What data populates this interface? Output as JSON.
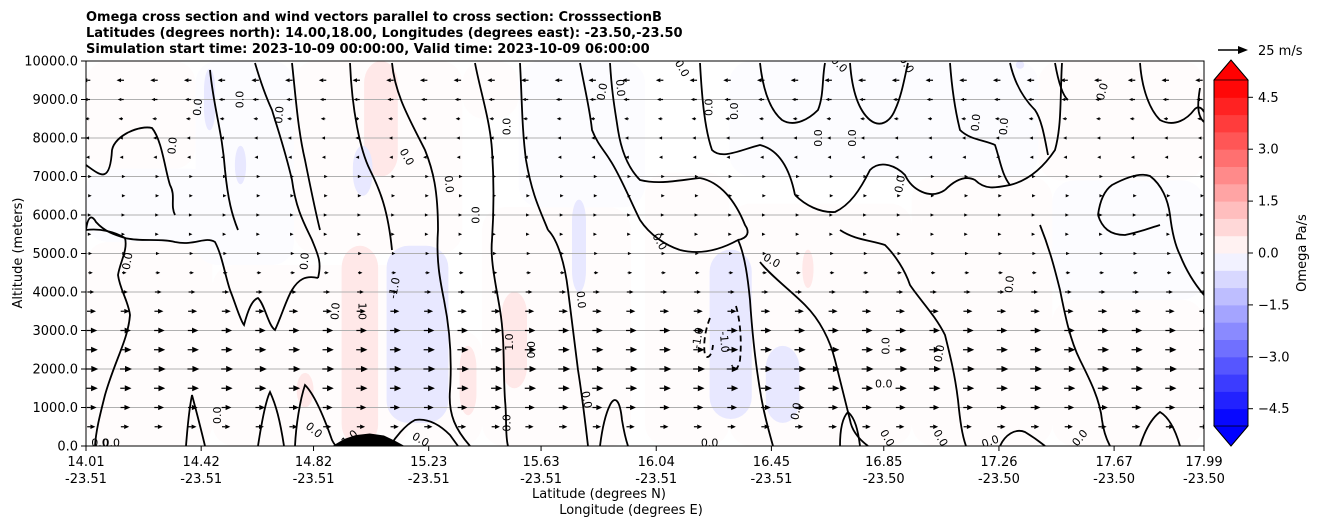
{
  "chart_data": {
    "type": "contour",
    "title_lines": [
      "Omega cross section and wind vectors parallel to cross section: CrosssectionB",
      "Latitudes (degrees north): 14.00,18.00, Longitudes (degrees east): -23.50,-23.50",
      "Simulation start time: 2023-10-09 00:00:00, Valid time: 2023-10-09 06:00:00"
    ],
    "ylabel": "Altitude (meters)",
    "xlabel_lines": [
      "Latitude (degrees N)",
      "Longitude (degrees E)"
    ],
    "ylim": [
      0,
      10000
    ],
    "xlim": [
      14.01,
      17.99
    ],
    "y_ticks": [
      {
        "value": 0,
        "label": "0.0"
      },
      {
        "value": 1000,
        "label": "1000.0"
      },
      {
        "value": 2000,
        "label": "2000.0"
      },
      {
        "value": 3000,
        "label": "3000.0"
      },
      {
        "value": 4000,
        "label": "4000.0"
      },
      {
        "value": 5000,
        "label": "5000.0"
      },
      {
        "value": 6000,
        "label": "6000.0"
      },
      {
        "value": 7000,
        "label": "7000.0"
      },
      {
        "value": 8000,
        "label": "8000.0"
      },
      {
        "value": 9000,
        "label": "9000.0"
      },
      {
        "value": 10000,
        "label": "10000.0"
      }
    ],
    "x_ticks": [
      {
        "lat": 14.01,
        "lat_label": "14.01",
        "lon_label": "-23.51"
      },
      {
        "lat": 14.42,
        "lat_label": "14.42",
        "lon_label": "-23.51"
      },
      {
        "lat": 14.82,
        "lat_label": "14.82",
        "lon_label": "-23.51"
      },
      {
        "lat": 15.23,
        "lat_label": "15.23",
        "lon_label": "-23.51"
      },
      {
        "lat": 15.63,
        "lat_label": "15.63",
        "lon_label": "-23.51"
      },
      {
        "lat": 16.04,
        "lat_label": "16.04",
        "lon_label": "-23.51"
      },
      {
        "lat": 16.45,
        "lat_label": "16.45",
        "lon_label": "-23.51"
      },
      {
        "lat": 16.85,
        "lat_label": "16.85",
        "lon_label": "-23.50"
      },
      {
        "lat": 17.26,
        "lat_label": "17.26",
        "lon_label": "-23.50"
      },
      {
        "lat": 17.67,
        "lat_label": "17.67",
        "lon_label": "-23.50"
      },
      {
        "lat": 17.99,
        "lat_label": "17.99",
        "lon_label": "-23.50"
      }
    ],
    "grid": "horizontal",
    "colorbar": {
      "label": "Omega Pa/s",
      "vmin": -5,
      "vmax": 5,
      "ticks": [
        {
          "value": 4.5,
          "label": "4.5"
        },
        {
          "value": 3.0,
          "label": "3.0"
        },
        {
          "value": 1.5,
          "label": "1.5"
        },
        {
          "value": 0.0,
          "label": "0.0"
        },
        {
          "value": -1.5,
          "label": "−1.5"
        },
        {
          "value": -3.0,
          "label": "−3.0"
        },
        {
          "value": -4.5,
          "label": "−4.5"
        }
      ],
      "negative_color": "#0000ff",
      "positive_color": "#ff0000",
      "extend": "both"
    },
    "quiver_key": {
      "label": "25 m/s",
      "speed": 25
    },
    "omega_regions": [
      {
        "value": 0.15,
        "lat": [
          14.01,
          14.46
        ],
        "alt": [
          0,
          5300
        ]
      },
      {
        "value": 0.15,
        "lat": [
          14.46,
          15.16
        ],
        "alt": [
          0,
          4700
        ]
      },
      {
        "value": 0.15,
        "lat": [
          15.16,
          15.42
        ],
        "alt": [
          0,
          3000
        ]
      },
      {
        "value": 0.15,
        "lat": [
          15.42,
          15.95
        ],
        "alt": [
          0,
          6200
        ]
      },
      {
        "value": 0.15,
        "lat": [
          16.0,
          16.3
        ],
        "alt": [
          0,
          7100
        ]
      },
      {
        "value": 0.15,
        "lat": [
          16.3,
          16.95
        ],
        "alt": [
          0,
          6300
        ]
      },
      {
        "value": 0.15,
        "lat": [
          16.95,
          17.45
        ],
        "alt": [
          0,
          7000
        ]
      },
      {
        "value": 0.15,
        "lat": [
          17.45,
          17.99
        ],
        "alt": [
          0,
          3800
        ]
      },
      {
        "value": 0.15,
        "lat": [
          14.01,
          14.4
        ],
        "alt": [
          7200,
          10000
        ]
      },
      {
        "value": 0.15,
        "lat": [
          14.75,
          15.35
        ],
        "alt": [
          5000,
          10000
        ]
      },
      {
        "value": 0.15,
        "lat": [
          15.35,
          15.55
        ],
        "alt": [
          8500,
          10000
        ]
      },
      {
        "value": 0.15,
        "lat": [
          17.4,
          17.99
        ],
        "alt": [
          6900,
          10000
        ]
      },
      {
        "value": -0.15,
        "lat": [
          14.01,
          14.46
        ],
        "alt": [
          5300,
          7200
        ]
      },
      {
        "value": -0.15,
        "lat": [
          14.4,
          14.75
        ],
        "alt": [
          4700,
          10000
        ]
      },
      {
        "value": -0.15,
        "lat": [
          15.55,
          16.0
        ],
        "alt": [
          6200,
          10000
        ]
      },
      {
        "value": -0.15,
        "lat": [
          16.3,
          17.4
        ],
        "alt": [
          7000,
          10000
        ]
      },
      {
        "value": -0.15,
        "lat": [
          17.45,
          17.99
        ],
        "alt": [
          3800,
          6900
        ]
      },
      {
        "value": 0.5,
        "lat": [
          15.0,
          15.12
        ],
        "alt": [
          7000,
          10000
        ]
      },
      {
        "value": 0.5,
        "lat": [
          14.92,
          15.05
        ],
        "alt": [
          0,
          5200
        ]
      },
      {
        "value": 0.5,
        "lat": [
          15.49,
          15.58
        ],
        "alt": [
          1500,
          4000
        ]
      },
      {
        "value": 0.5,
        "lat": [
          15.34,
          15.4
        ],
        "alt": [
          800,
          2600
        ]
      },
      {
        "value": 0.5,
        "lat": [
          14.76,
          14.82
        ],
        "alt": [
          1000,
          1900
        ]
      },
      {
        "value": 0.5,
        "lat": [
          16.56,
          16.6
        ],
        "alt": [
          4100,
          5100
        ]
      },
      {
        "value": -0.5,
        "lat": [
          15.08,
          15.3
        ],
        "alt": [
          600,
          5200
        ]
      },
      {
        "value": -0.5,
        "lat": [
          14.96,
          15.03
        ],
        "alt": [
          6500,
          7800
        ]
      },
      {
        "value": -0.5,
        "lat": [
          16.23,
          16.38
        ],
        "alt": [
          700,
          5100
        ]
      },
      {
        "value": -0.5,
        "lat": [
          16.43,
          16.55
        ],
        "alt": [
          600,
          2600
        ]
      },
      {
        "value": -0.5,
        "lat": [
          15.74,
          15.79
        ],
        "alt": [
          4000,
          6400
        ]
      },
      {
        "value": -0.5,
        "lat": [
          14.43,
          14.47
        ],
        "alt": [
          8200,
          9800
        ]
      },
      {
        "value": -0.5,
        "lat": [
          14.54,
          14.58
        ],
        "alt": [
          6800,
          7800
        ]
      },
      {
        "value": -0.5,
        "lat": [
          17.32,
          17.35
        ],
        "alt": [
          9800,
          10000
        ]
      }
    ],
    "contour_labels": [
      {
        "text": "0.0",
        "lat": 14.06,
        "alt": 60,
        "angle": 0
      },
      {
        "text": "0.0",
        "lat": 14.1,
        "alt": 60,
        "angle": 0
      },
      {
        "text": "0.0",
        "lat": 14.16,
        "alt": 4800,
        "angle": -80
      },
      {
        "text": "0.0",
        "lat": 14.32,
        "alt": 7800,
        "angle": -85
      },
      {
        "text": "0.0",
        "lat": 14.41,
        "alt": 8800,
        "angle": -85
      },
      {
        "text": "0.0",
        "lat": 14.56,
        "alt": 9000,
        "angle": -90
      },
      {
        "text": "0.0",
        "lat": 14.7,
        "alt": 8600,
        "angle": -85
      },
      {
        "text": "0.0",
        "lat": 14.48,
        "alt": 800,
        "angle": -90
      },
      {
        "text": "0.0",
        "lat": 14.79,
        "alt": 4800,
        "angle": -85
      },
      {
        "text": "0.0",
        "lat": 14.82,
        "alt": 400,
        "angle": 40
      },
      {
        "text": "0.0",
        "lat": 14.9,
        "alt": 3500,
        "angle": -85
      },
      {
        "text": "0.0",
        "lat": 15.15,
        "alt": 7500,
        "angle": 60
      },
      {
        "text": "0.0",
        "lat": 15.2,
        "alt": 150,
        "angle": 30
      },
      {
        "text": "0.0",
        "lat": 15.3,
        "alt": 6800,
        "angle": 85
      },
      {
        "text": "0.0",
        "lat": 15.4,
        "alt": 6000,
        "angle": -90
      },
      {
        "text": "0.0",
        "lat": 15.51,
        "alt": 8300,
        "angle": -90
      },
      {
        "text": "0.0",
        "lat": 15.51,
        "alt": 600,
        "angle": -90
      },
      {
        "text": "0.0",
        "lat": 15.59,
        "alt": 2500,
        "angle": 90
      },
      {
        "text": "0.0",
        "lat": 15.77,
        "alt": 3800,
        "angle": 85
      },
      {
        "text": "0.0",
        "lat": 15.79,
        "alt": 1200,
        "angle": 80
      },
      {
        "text": "0.0",
        "lat": 15.85,
        "alt": 9200,
        "angle": -80
      },
      {
        "text": "0.0",
        "lat": 15.91,
        "alt": 9300,
        "angle": 85
      },
      {
        "text": "0.0",
        "lat": 16.05,
        "alt": 5300,
        "angle": 60
      },
      {
        "text": "0.0",
        "lat": 16.13,
        "alt": 9800,
        "angle": 60
      },
      {
        "text": "0.0",
        "lat": 16.23,
        "alt": 8800,
        "angle": -90
      },
      {
        "text": "0.0",
        "lat": 16.23,
        "alt": 60,
        "angle": 0
      },
      {
        "text": "0.0",
        "lat": 16.32,
        "alt": 8700,
        "angle": -90
      },
      {
        "text": "0.0",
        "lat": 16.45,
        "alt": 4800,
        "angle": 30
      },
      {
        "text": "0.0",
        "lat": 16.62,
        "alt": 8000,
        "angle": -90
      },
      {
        "text": "0.0",
        "lat": 16.69,
        "alt": 9900,
        "angle": 45
      },
      {
        "text": "0.0",
        "lat": 16.74,
        "alt": 8000,
        "angle": -90
      },
      {
        "text": "0.0",
        "lat": 16.86,
        "alt": 2600,
        "angle": -90
      },
      {
        "text": "0.0",
        "lat": 16.85,
        "alt": 1600,
        "angle": 0
      },
      {
        "text": "0.0",
        "lat": 16.91,
        "alt": 6800,
        "angle": -80
      },
      {
        "text": "0.0",
        "lat": 16.93,
        "alt": 9900,
        "angle": 60
      },
      {
        "text": "0.0",
        "lat": 17.05,
        "alt": 2400,
        "angle": -80
      },
      {
        "text": "0.0",
        "lat": 17.18,
        "alt": 8400,
        "angle": -85
      },
      {
        "text": "0.0",
        "lat": 17.23,
        "alt": 100,
        "angle": -20
      },
      {
        "text": "0.0",
        "lat": 17.28,
        "alt": 8300,
        "angle": -85
      },
      {
        "text": "0.0",
        "lat": 17.3,
        "alt": 4200,
        "angle": -85
      },
      {
        "text": "0.0",
        "lat": 17.55,
        "alt": 200,
        "angle": -50
      },
      {
        "text": "0.0",
        "lat": 17.63,
        "alt": 9200,
        "angle": -75
      },
      {
        "text": "0.0",
        "lat": 16.54,
        "alt": 900,
        "angle": -80
      },
      {
        "text": "0.0",
        "lat": 16.86,
        "alt": 200,
        "angle": 60
      },
      {
        "text": "0.0",
        "lat": 17.05,
        "alt": 200,
        "angle": 60
      },
      {
        "text": "1.0",
        "lat": 14.99,
        "alt": 3500,
        "angle": 90
      },
      {
        "text": "1.0",
        "lat": 15.52,
        "alt": 2700,
        "angle": -90
      },
      {
        "text": "1.0",
        "lat": 14.95,
        "alt": 200,
        "angle": -40
      },
      {
        "text": "-1.0",
        "lat": 15.11,
        "alt": 4100,
        "angle": -80
      },
      {
        "text": "-1.0",
        "lat": 16.19,
        "alt": 2800,
        "angle": -80
      },
      {
        "text": "-1.0",
        "lat": 16.28,
        "alt": 2700,
        "angle": 85
      }
    ],
    "terrain": [
      {
        "lat": 14.89,
        "alt": 0
      },
      {
        "lat": 14.93,
        "alt": 170
      },
      {
        "lat": 14.97,
        "alt": 270
      },
      {
        "lat": 15.02,
        "alt": 310
      },
      {
        "lat": 15.07,
        "alt": 260
      },
      {
        "lat": 15.11,
        "alt": 120
      },
      {
        "lat": 15.14,
        "alt": 0
      }
    ],
    "vectors": {
      "lat_start": 14.02,
      "lat_step": 0.12,
      "alt_levels": [
        500,
        1000,
        1500,
        2000,
        2500,
        3000,
        3500,
        4000,
        4500,
        5000,
        5500,
        6000,
        6500,
        7000,
        7500,
        8000,
        8500,
        9000,
        9500
      ],
      "speed_by_alt": [
        {
          "alt": 500,
          "u": 11
        },
        {
          "alt": 1000,
          "u": 13
        },
        {
          "alt": 1500,
          "u": 15
        },
        {
          "alt": 2000,
          "u": 16
        },
        {
          "alt": 2500,
          "u": 15
        },
        {
          "alt": 3000,
          "u": 14
        },
        {
          "alt": 3500,
          "u": 12
        },
        {
          "alt": 4000,
          "u": 9
        },
        {
          "alt": 4500,
          "u": 6
        },
        {
          "alt": 5000,
          "u": 4
        },
        {
          "alt": 5500,
          "u": 2
        },
        {
          "alt": 6000,
          "u": 2
        },
        {
          "alt": 6500,
          "u": 3
        },
        {
          "alt": 7000,
          "u": 3
        },
        {
          "alt": 7500,
          "u": -3
        },
        {
          "alt": 8000,
          "u": -4
        },
        {
          "alt": 8500,
          "u": -6
        },
        {
          "alt": 9000,
          "u": -8
        },
        {
          "alt": 9500,
          "u": -10
        }
      ]
    }
  }
}
